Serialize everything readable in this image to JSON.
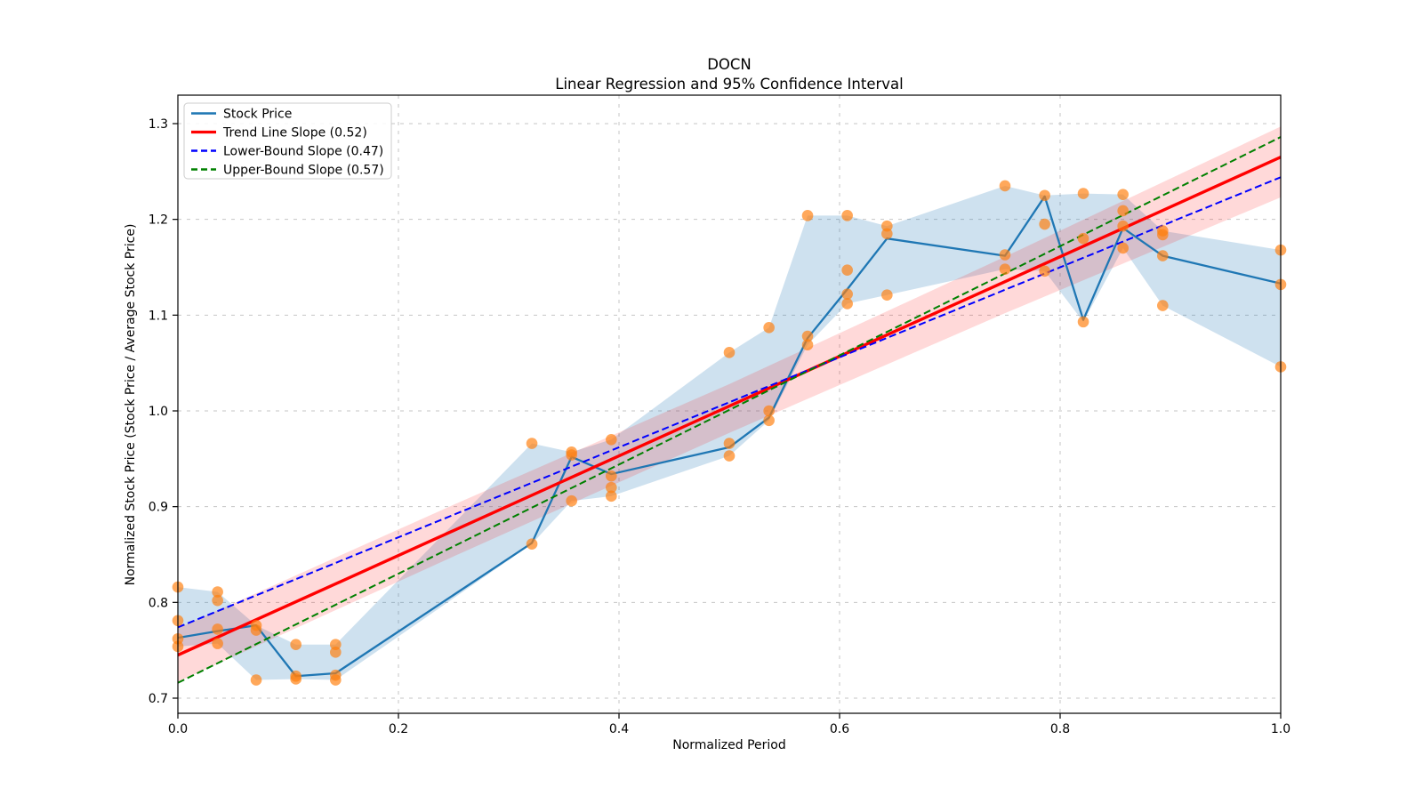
{
  "title": "DOCN",
  "subtitle": "Linear Regression and 95% Confidence Interval",
  "xlabel": "Normalized Period",
  "ylabel": "Normalized Stock Price (Stock Price / Average Stock Price)",
  "legend": {
    "position": "upper left",
    "items": [
      {
        "label": "Stock Price",
        "color": "#1f77b4",
        "dash": "solid"
      },
      {
        "label": "Trend Line Slope (0.52)",
        "color": "#ff0000",
        "dash": "solid"
      },
      {
        "label": "Lower-Bound Slope (0.47)",
        "color": "#0000ff",
        "dash": "dashed"
      },
      {
        "label": "Upper-Bound Slope (0.57)",
        "color": "#008000",
        "dash": "dashed"
      }
    ]
  },
  "colors": {
    "stock_line": "#1f77b4",
    "stock_band": "#1f77b4",
    "trend_line": "#ff0000",
    "ci_band": "#ff0000",
    "lower_bound": "#0000ff",
    "upper_bound": "#008000",
    "scatter": "#ff7f0e",
    "grid": "#c6c6c6",
    "spine": "#000000"
  },
  "chart_data": {
    "type": "line",
    "title": "DOCN",
    "subtitle": "Linear Regression and 95% Confidence Interval",
    "xlabel": "Normalized Period",
    "ylabel": "Normalized Stock Price (Stock Price / Average Stock Price)",
    "xlim": [
      0.0,
      1.0
    ],
    "ylim": [
      0.684,
      1.329
    ],
    "x_ticks": [
      0.0,
      0.2,
      0.4,
      0.6,
      0.8,
      1.0
    ],
    "y_ticks": [
      0.7,
      0.8,
      0.9,
      1.0,
      1.1,
      1.2,
      1.3
    ],
    "grid": true,
    "legend_position": "upper left",
    "trend_line": {
      "name": "Trend Line Slope (0.52)",
      "slope": 0.52,
      "y_start": 0.745,
      "y_end": 1.265
    },
    "lower_bound": {
      "name": "Lower-Bound Slope (0.47)",
      "slope": 0.47,
      "y_start": 0.774,
      "y_end": 1.244
    },
    "upper_bound": {
      "name": "Upper-Bound Slope (0.57)",
      "slope": 0.57,
      "y_start": 0.716,
      "y_end": 1.286
    },
    "ci_band": [
      [
        0.0,
        0.717,
        0.773
      ],
      [
        0.25,
        0.848,
        0.902
      ],
      [
        0.5,
        0.977,
        1.028
      ],
      [
        0.75,
        1.102,
        1.161
      ],
      [
        1.0,
        1.223,
        1.297
      ]
    ],
    "stock_price_line": [
      [
        0.0,
        0.763
      ],
      [
        0.036,
        0.77
      ],
      [
        0.071,
        0.776
      ],
      [
        0.107,
        0.723
      ],
      [
        0.143,
        0.726
      ],
      [
        0.321,
        0.862
      ],
      [
        0.357,
        0.952
      ],
      [
        0.393,
        0.934
      ],
      [
        0.5,
        0.962
      ],
      [
        0.536,
        0.993
      ],
      [
        0.571,
        1.076
      ],
      [
        0.607,
        1.127
      ],
      [
        0.643,
        1.18
      ],
      [
        0.75,
        1.162
      ],
      [
        0.786,
        1.224
      ],
      [
        0.821,
        1.095
      ],
      [
        0.857,
        1.191
      ],
      [
        0.893,
        1.162
      ],
      [
        1.0,
        1.133
      ]
    ],
    "minmax_band": [
      [
        0.0,
        0.754,
        0.816
      ],
      [
        0.036,
        0.757,
        0.811
      ],
      [
        0.071,
        0.719,
        0.776
      ],
      [
        0.107,
        0.72,
        0.756
      ],
      [
        0.143,
        0.719,
        0.756
      ],
      [
        0.321,
        0.861,
        0.966
      ],
      [
        0.357,
        0.906,
        0.957
      ],
      [
        0.393,
        0.911,
        0.97
      ],
      [
        0.5,
        0.953,
        1.061
      ],
      [
        0.536,
        0.99,
        1.087
      ],
      [
        0.571,
        1.069,
        1.204
      ],
      [
        0.607,
        1.112,
        1.204
      ],
      [
        0.643,
        1.121,
        1.193
      ],
      [
        0.75,
        1.148,
        1.235
      ],
      [
        0.786,
        1.146,
        1.225
      ],
      [
        0.821,
        1.093,
        1.227
      ],
      [
        0.857,
        1.17,
        1.226
      ],
      [
        0.893,
        1.11,
        1.188
      ],
      [
        1.0,
        1.046,
        1.168
      ]
    ],
    "scatter": [
      [
        0.0,
        0.816
      ],
      [
        0.0,
        0.781
      ],
      [
        0.0,
        0.762
      ],
      [
        0.0,
        0.754
      ],
      [
        0.036,
        0.811
      ],
      [
        0.036,
        0.802
      ],
      [
        0.036,
        0.772
      ],
      [
        0.036,
        0.757
      ],
      [
        0.071,
        0.776
      ],
      [
        0.071,
        0.771
      ],
      [
        0.071,
        0.719
      ],
      [
        0.107,
        0.756
      ],
      [
        0.107,
        0.723
      ],
      [
        0.107,
        0.72
      ],
      [
        0.143,
        0.756
      ],
      [
        0.143,
        0.748
      ],
      [
        0.143,
        0.724
      ],
      [
        0.143,
        0.719
      ],
      [
        0.321,
        0.966
      ],
      [
        0.321,
        0.861
      ],
      [
        0.357,
        0.957
      ],
      [
        0.357,
        0.954
      ],
      [
        0.357,
        0.906
      ],
      [
        0.393,
        0.97
      ],
      [
        0.393,
        0.932
      ],
      [
        0.393,
        0.92
      ],
      [
        0.393,
        0.911
      ],
      [
        0.5,
        1.061
      ],
      [
        0.5,
        0.966
      ],
      [
        0.5,
        0.953
      ],
      [
        0.536,
        1.087
      ],
      [
        0.536,
        1.0
      ],
      [
        0.536,
        0.99
      ],
      [
        0.571,
        1.204
      ],
      [
        0.571,
        1.078
      ],
      [
        0.571,
        1.069
      ],
      [
        0.607,
        1.204
      ],
      [
        0.607,
        1.147
      ],
      [
        0.607,
        1.122
      ],
      [
        0.607,
        1.112
      ],
      [
        0.643,
        1.193
      ],
      [
        0.643,
        1.185
      ],
      [
        0.643,
        1.121
      ],
      [
        0.75,
        1.235
      ],
      [
        0.75,
        1.163
      ],
      [
        0.75,
        1.148
      ],
      [
        0.786,
        1.225
      ],
      [
        0.786,
        1.195
      ],
      [
        0.786,
        1.146
      ],
      [
        0.821,
        1.227
      ],
      [
        0.821,
        1.18
      ],
      [
        0.821,
        1.093
      ],
      [
        0.857,
        1.226
      ],
      [
        0.857,
        1.209
      ],
      [
        0.857,
        1.193
      ],
      [
        0.857,
        1.17
      ],
      [
        0.893,
        1.188
      ],
      [
        0.893,
        1.184
      ],
      [
        0.893,
        1.162
      ],
      [
        0.893,
        1.11
      ],
      [
        1.0,
        1.168
      ],
      [
        1.0,
        1.132
      ],
      [
        1.0,
        1.046
      ]
    ]
  }
}
